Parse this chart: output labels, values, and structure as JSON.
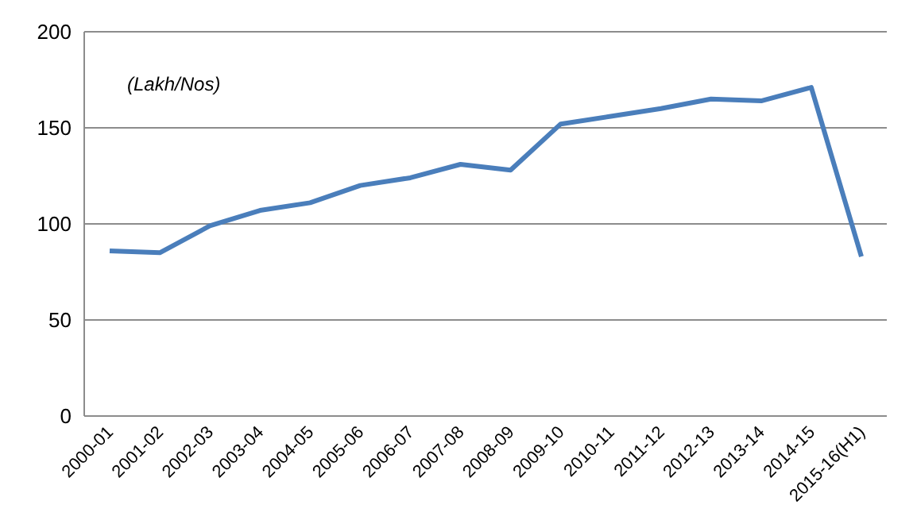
{
  "chart_data": {
    "type": "line",
    "categories": [
      "2000-01",
      "2001-02",
      "2002-03",
      "2003-04",
      "2004-05",
      "2005-06",
      "2006-07",
      "2007-08",
      "2008-09",
      "2009-10",
      "2010-11",
      "2011-12",
      "2012-13",
      "2013-14",
      "2014-15",
      "2015-16(H1)"
    ],
    "series": [
      {
        "color": "#4a7ebb",
        "values": [
          86,
          85,
          99,
          107,
          111,
          120,
          124,
          131,
          128,
          152,
          156,
          160,
          165,
          164,
          171,
          83
        ]
      }
    ],
    "annotations": [
      "(Lakh/Nos)"
    ],
    "ylim": [
      0,
      200
    ],
    "yticks": [
      0,
      50,
      100,
      150,
      200
    ],
    "grid": "y",
    "marker": "none",
    "line_style": "solid"
  }
}
